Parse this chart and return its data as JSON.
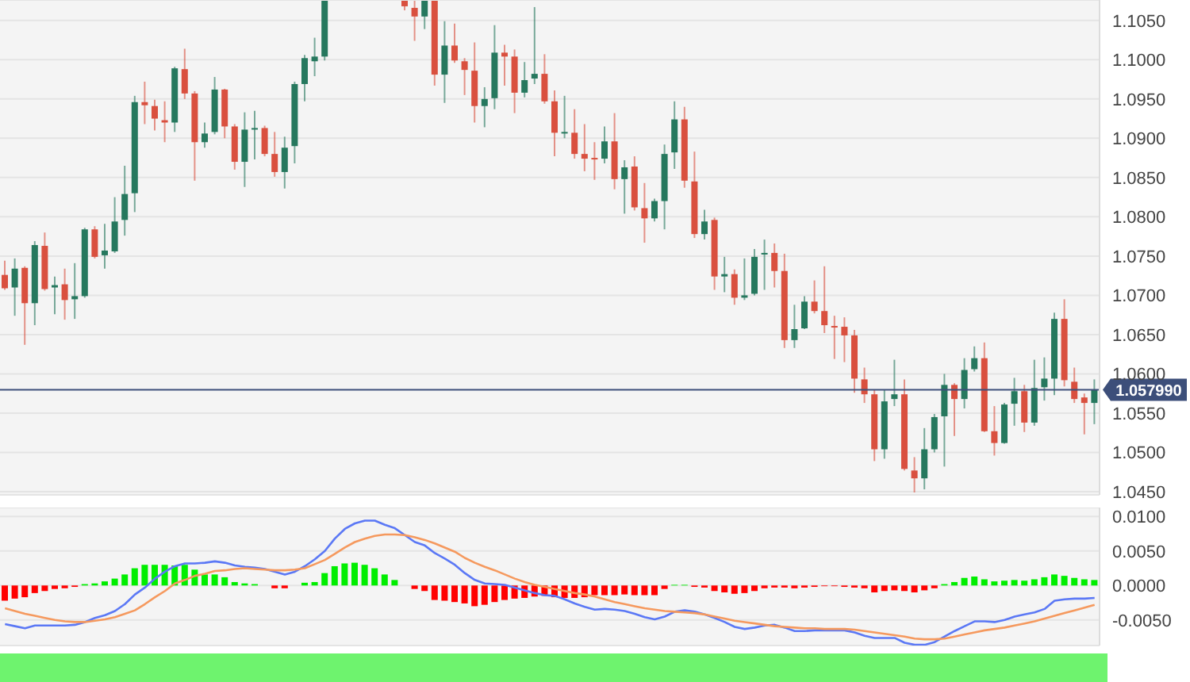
{
  "chart_data": [
    {
      "type": "candlestick",
      "tick_labels": "y",
      "grid": "y",
      "categories": [
        null,
        null,
        null,
        null,
        null,
        null,
        null,
        null,
        null,
        null,
        null,
        null,
        null,
        null,
        null,
        null,
        null,
        null,
        null,
        null,
        null,
        null,
        null,
        null,
        null,
        null,
        null,
        null,
        null,
        null,
        null,
        null,
        null,
        null,
        null,
        null,
        null,
        null,
        null,
        null,
        null,
        null,
        null,
        null,
        null,
        null,
        null,
        null,
        null,
        null,
        null,
        null,
        null,
        null,
        null,
        null,
        null,
        null,
        null,
        null,
        null,
        null,
        null,
        null,
        null,
        null,
        null,
        null,
        null,
        null,
        null,
        null,
        null,
        null,
        null,
        null,
        null,
        null,
        null,
        null,
        null,
        null,
        null,
        null,
        null,
        null,
        null,
        null,
        null,
        null,
        null,
        null,
        null,
        null,
        null,
        null,
        null,
        null,
        null,
        null,
        null,
        null,
        null,
        null,
        null,
        null,
        null,
        null,
        null,
        null
      ],
      "ohlc": [
        [
          1.0726,
          1.0744,
          1.0707,
          1.0709
        ],
        [
          1.071,
          1.0747,
          1.0674,
          1.0734
        ],
        [
          1.0735,
          1.0737,
          1.0637,
          1.069
        ],
        [
          1.069,
          1.0769,
          1.0662,
          1.0764
        ],
        [
          1.0763,
          1.078,
          1.0706,
          1.0708
        ],
        [
          1.071,
          1.0724,
          1.0676,
          1.0713
        ],
        [
          1.0714,
          1.0734,
          1.0669,
          1.0694
        ],
        [
          1.0695,
          1.0741,
          1.067,
          1.0699
        ],
        [
          1.0699,
          1.0786,
          1.0697,
          1.0784
        ],
        [
          1.0784,
          1.0788,
          1.0747,
          1.0749
        ],
        [
          1.0751,
          1.0791,
          1.0734,
          1.0757
        ],
        [
          1.0756,
          1.0825,
          1.0754,
          1.0794
        ],
        [
          1.0796,
          1.0865,
          1.0776,
          1.0829
        ],
        [
          1.083,
          1.0954,
          1.0806,
          1.0946
        ],
        [
          1.0946,
          1.0972,
          1.0918,
          1.0942
        ],
        [
          1.0941,
          1.0949,
          1.091,
          1.0925
        ],
        [
          1.0923,
          1.0947,
          1.0895,
          1.092
        ],
        [
          1.092,
          1.0991,
          1.0908,
          1.0989
        ],
        [
          1.0988,
          1.1014,
          1.095,
          1.0957
        ],
        [
          1.0957,
          1.096,
          1.0846,
          1.0895
        ],
        [
          1.0895,
          1.092,
          1.0888,
          1.0906
        ],
        [
          1.0908,
          1.0978,
          1.0905,
          1.0962
        ],
        [
          1.0962,
          1.0963,
          1.09,
          1.0915
        ],
        [
          1.0915,
          1.0918,
          1.086,
          1.087
        ],
        [
          1.087,
          1.0933,
          1.0838,
          1.0911
        ],
        [
          1.0912,
          1.0935,
          1.0873,
          1.0913
        ],
        [
          1.0913,
          1.0916,
          1.0877,
          1.088
        ],
        [
          1.088,
          1.0908,
          1.0851,
          1.0857
        ],
        [
          1.0857,
          1.0902,
          1.0836,
          1.0888
        ],
        [
          1.089,
          1.0972,
          1.0868,
          1.0969
        ],
        [
          1.0969,
          1.1006,
          1.0947,
          1.1002
        ],
        [
          1.0998,
          1.1028,
          1.0979,
          1.1004
        ],
        [
          1.1004,
          1.1075,
          1.0999,
          1.1075
        ],
        null,
        null,
        null,
        null,
        null,
        null,
        null,
        [
          1.1075,
          1.1075,
          1.1063,
          1.1068
        ],
        [
          1.1066,
          1.1075,
          1.1024,
          1.1055
        ],
        [
          1.1055,
          1.1075,
          1.1039,
          1.1075
        ],
        [
          1.1075,
          1.1075,
          1.0967,
          1.0981
        ],
        [
          1.0981,
          1.1049,
          1.0945,
          1.1018
        ],
        [
          1.1018,
          1.1046,
          1.0996,
          1.0999
        ],
        [
          1.0998,
          1.1002,
          1.0955,
          1.0987
        ],
        [
          1.0986,
          1.1022,
          1.092,
          1.0941
        ],
        [
          1.0941,
          1.0965,
          1.0914,
          1.095
        ],
        [
          1.0951,
          1.1044,
          1.0937,
          1.1009
        ],
        [
          1.1009,
          1.1019,
          1.0967,
          1.1004
        ],
        [
          1.1004,
          1.1013,
          1.0932,
          1.0958
        ],
        [
          1.0958,
          1.0997,
          1.0952,
          1.0974
        ],
        [
          1.0976,
          1.1067,
          1.0969,
          1.0982
        ],
        [
          1.0982,
          1.1007,
          1.0944,
          1.0947
        ],
        [
          1.0947,
          1.0961,
          1.0877,
          1.0907
        ],
        [
          1.0907,
          1.0954,
          1.09,
          1.0908
        ],
        [
          1.0907,
          1.0937,
          1.0874,
          1.088
        ],
        [
          1.088,
          1.0918,
          1.0858,
          1.0874
        ],
        [
          1.0875,
          1.0895,
          1.0847,
          1.0873
        ],
        [
          1.0874,
          1.0915,
          1.0868,
          1.0896
        ],
        [
          1.0896,
          1.0932,
          1.0835,
          1.0848
        ],
        [
          1.0848,
          1.0872,
          1.0804,
          1.0863
        ],
        [
          1.0864,
          1.0877,
          1.0808,
          1.0812
        ],
        [
          1.0811,
          1.0843,
          1.0767,
          1.0798
        ],
        [
          1.0798,
          1.0823,
          1.0794,
          1.082
        ],
        [
          1.082,
          1.0892,
          1.0784,
          1.088
        ],
        [
          1.0882,
          1.0947,
          1.0861,
          1.0924
        ],
        [
          1.0924,
          1.094,
          1.0837,
          1.0846
        ],
        [
          1.0845,
          1.0883,
          1.0773,
          1.0778
        ],
        [
          1.0778,
          1.0809,
          1.0771,
          1.0794
        ],
        [
          1.0796,
          1.0799,
          1.0707,
          1.0724
        ],
        [
          1.0724,
          1.0749,
          1.0704,
          1.0727
        ],
        [
          1.0727,
          1.0733,
          1.0688,
          1.0697
        ],
        [
          1.0697,
          1.0747,
          1.0694,
          1.07
        ],
        [
          1.0702,
          1.0759,
          1.07,
          1.0749
        ],
        [
          1.0752,
          1.0771,
          1.0707,
          1.0754
        ],
        [
          1.0754,
          1.0766,
          1.071,
          1.0731
        ],
        [
          1.0731,
          1.0753,
          1.0633,
          1.0643
        ],
        [
          1.0643,
          1.0688,
          1.0633,
          1.0657
        ],
        [
          1.0658,
          1.0699,
          1.0657,
          1.0692
        ],
        [
          1.0692,
          1.0719,
          1.0677,
          1.068
        ],
        [
          1.068,
          1.0737,
          1.0652,
          1.0662
        ],
        [
          1.0661,
          1.0674,
          1.0619,
          1.066
        ],
        [
          1.066,
          1.0672,
          1.0615,
          1.0649
        ],
        [
          1.0649,
          1.0656,
          1.0576,
          1.0594
        ],
        [
          1.0593,
          1.0608,
          1.0563,
          1.0574
        ],
        [
          1.0574,
          1.058,
          1.0489,
          1.0504
        ],
        [
          1.0504,
          1.058,
          1.0492,
          1.0565
        ],
        [
          1.0568,
          1.0618,
          1.0559,
          1.0574
        ],
        [
          1.0574,
          1.0593,
          1.0477,
          1.0479
        ],
        [
          1.0477,
          1.0494,
          1.0449,
          1.0467
        ],
        [
          1.0467,
          1.0531,
          1.0453,
          1.0504
        ],
        [
          1.0504,
          1.0549,
          1.05,
          1.0545
        ],
        [
          1.0546,
          1.06,
          1.0482,
          1.0586
        ],
        [
          1.0586,
          1.0588,
          1.0521,
          1.0568
        ],
        [
          1.0568,
          1.062,
          1.0556,
          1.0605
        ],
        [
          1.0606,
          1.0635,
          1.0603,
          1.062
        ],
        [
          1.062,
          1.064,
          1.0526,
          1.0527
        ],
        [
          1.0527,
          1.0559,
          1.0496,
          1.0512
        ],
        [
          1.0512,
          1.0563,
          1.0511,
          1.0561
        ],
        [
          1.0562,
          1.0595,
          1.0534,
          1.0578
        ],
        [
          1.0578,
          1.0586,
          1.0526,
          1.0538
        ],
        [
          1.0538,
          1.0618,
          1.0534,
          1.0582
        ],
        [
          1.0583,
          1.0621,
          1.0566,
          1.0594
        ],
        [
          1.0594,
          1.0678,
          1.0573,
          1.067
        ],
        [
          1.067,
          1.0695,
          1.0584,
          1.0592
        ],
        [
          1.059,
          1.0608,
          1.0563,
          1.0568
        ],
        [
          1.057,
          1.0575,
          1.0523,
          1.0563
        ],
        [
          1.0563,
          1.0593,
          1.0536,
          1.058
        ]
      ],
      "colors": [
        "#d9503f",
        "#26785e",
        "#d9503f",
        "#26785e",
        "#d9503f",
        "#26785e",
        "#d9503f",
        "#26785e",
        "#26785e",
        "#d9503f",
        "#26785e",
        "#26785e",
        "#26785e",
        "#26785e",
        "#d9503f",
        "#d9503f",
        "#d9503f",
        "#26785e",
        "#d9503f",
        "#d9503f",
        "#26785e",
        "#26785e",
        "#d9503f",
        "#d9503f",
        "#26785e",
        "#26785e",
        "#d9503f",
        "#d9503f",
        "#26785e",
        "#26785e",
        "#26785e",
        "#26785e",
        "#26785e",
        null,
        null,
        null,
        null,
        null,
        null,
        null,
        "#d9503f",
        "#d9503f",
        "#26785e",
        "#d9503f",
        "#26785e",
        "#d9503f",
        "#d9503f",
        "#d9503f",
        "#26785e",
        "#26785e",
        "#d9503f",
        "#d9503f",
        "#26785e",
        "#26785e",
        "#d9503f",
        "#d9503f",
        "#26785e",
        "#d9503f",
        "#d9503f",
        "#d9503f",
        "#26785e",
        "#d9503f",
        "#26785e",
        "#d9503f",
        "#d9503f",
        "#26785e",
        "#26785e",
        "#26785e",
        "#d9503f",
        "#d9503f",
        "#26785e",
        "#d9503f",
        "#26785e",
        "#d9503f",
        "#26785e",
        "#26785e",
        "#26785e",
        "#d9503f",
        "#d9503f",
        "#26785e",
        "#26785e",
        "#d9503f",
        "#d9503f",
        "#d9503f",
        "#d9503f",
        "#d9503f",
        "#d9503f",
        "#d9503f",
        "#26785e",
        "#26785e",
        "#d9503f",
        "#d9503f",
        "#26785e",
        "#26785e",
        "#26785e",
        "#d9503f",
        "#26785e",
        "#26785e",
        "#d9503f",
        "#d9503f",
        "#26785e",
        "#26785e",
        "#d9503f",
        "#26785e",
        "#26785e",
        "#26785e",
        "#d9503f",
        "#d9503f",
        "#d9503f",
        "#26785e"
      ],
      "ylim": [
        1.0446,
        1.1076
      ],
      "yticks": [
        {
          "value": 1.045,
          "label": "1.0450"
        },
        {
          "value": 1.05,
          "label": "1.0500"
        },
        {
          "value": 1.055,
          "label": "1.0550"
        },
        {
          "value": 1.06,
          "label": "1.0600"
        },
        {
          "value": 1.065,
          "label": "1.0650"
        },
        {
          "value": 1.07,
          "label": "1.0700"
        },
        {
          "value": 1.075,
          "label": "1.0750"
        },
        {
          "value": 1.08,
          "label": "1.0800"
        },
        {
          "value": 1.085,
          "label": "1.0850"
        },
        {
          "value": 1.09,
          "label": "1.0900"
        },
        {
          "value": 1.095,
          "label": "1.0950"
        },
        {
          "value": 1.1,
          "label": "1.1000"
        },
        {
          "value": 1.105,
          "label": "1.1050"
        }
      ],
      "ref_lines": [
        {
          "axis": "y",
          "value": 1.05799,
          "label": "1.057990",
          "color": "#3d4f7a"
        }
      ]
    },
    {
      "type": "bar",
      "tick_labels": "y",
      "grid": "y",
      "categories": [
        null,
        null,
        null,
        null,
        null,
        null,
        null,
        null,
        null,
        null,
        null,
        null,
        null,
        null,
        null,
        null,
        null,
        null,
        null,
        null,
        null,
        null,
        null,
        null,
        null,
        null,
        null,
        null,
        null,
        null,
        null,
        null,
        null,
        null,
        null,
        null,
        null,
        null,
        null,
        null,
        null,
        null,
        null,
        null,
        null,
        null,
        null,
        null,
        null,
        null,
        null,
        null,
        null,
        null,
        null,
        null,
        null,
        null,
        null,
        null,
        null,
        null,
        null,
        null,
        null,
        null,
        null,
        null,
        null,
        null,
        null,
        null,
        null,
        null,
        null,
        null,
        null,
        null,
        null,
        null,
        null,
        null,
        null,
        null,
        null,
        null,
        null,
        null,
        null,
        null,
        null,
        null,
        null,
        null,
        null,
        null,
        null,
        null,
        null,
        null,
        null,
        null,
        null,
        null,
        null,
        null,
        null,
        null,
        null,
        null
      ],
      "series": [
        {
          "type": "bar",
          "values": [
            -0.0022,
            -0.0019,
            -0.0017,
            -0.0011,
            -0.0008,
            -0.0005,
            -0.0004,
            -0.0002,
            0.0002,
            0.0003,
            0.0006,
            0.001,
            0.0016,
            0.0025,
            0.003,
            0.003,
            0.003,
            0.0029,
            0.003,
            0.0023,
            0.0016,
            0.0016,
            0.0012,
            0.0005,
            0.0003,
            0.0002,
            0,
            -0.0004,
            -0.0004,
            0,
            0.0004,
            0.0005,
            0.0018,
            0.0028,
            0.0032,
            0.0033,
            0.003,
            0.0025,
            0.0016,
            0.0008,
            0,
            -0.0005,
            -0.0008,
            -0.0021,
            -0.0022,
            -0.0024,
            -0.0026,
            -0.003,
            -0.0028,
            -0.0024,
            -0.0021,
            -0.0019,
            -0.0018,
            -0.0016,
            -0.0015,
            -0.0017,
            -0.0018,
            -0.0018,
            -0.0017,
            -0.0014,
            -0.0014,
            -0.0014,
            -0.0013,
            -0.0014,
            -0.0014,
            -0.0014,
            -0.0005,
            0.0001,
            0.0001,
            -0.0002,
            -0.0003,
            -0.0008,
            -0.001,
            -0.0012,
            -0.0011,
            -0.0008,
            -0.0004,
            -0.0003,
            -0.0003,
            -0.0004,
            -0.0003,
            -0.0002,
            -0.0001,
            -0.0001,
            -0.0002,
            -0.0003,
            -0.0004,
            -0.001,
            -0.0008,
            -0.0007,
            -0.0008,
            -0.001,
            -0.0007,
            -0.0004,
            0.0002,
            0.0005,
            0.0011,
            0.0013,
            0.0009,
            0.0006,
            0.0007,
            0.0008,
            0.0007,
            0.0009,
            0.0012,
            0.0016,
            0.0014,
            0.0011,
            0.0009,
            0.0008
          ],
          "colors": [
            "#ff0000",
            "#ff0000",
            "#ff0000",
            "#ff0000",
            "#ff0000",
            "#ff0000",
            "#ff0000",
            "#ff0000",
            "#00ee00",
            "#00ee00",
            "#00ee00",
            "#00ee00",
            "#00ee00",
            "#00ee00",
            "#00ee00",
            "#00ee00",
            "#00ee00",
            "#00ee00",
            "#00ee00",
            "#00ee00",
            "#00ee00",
            "#00ee00",
            "#00ee00",
            "#00ee00",
            "#00ee00",
            "#00ee00",
            "#00ee00",
            "#ff0000",
            "#ff0000",
            "#00ee00",
            "#00ee00",
            "#00ee00",
            "#00ee00",
            "#00ee00",
            "#00ee00",
            "#00ee00",
            "#00ee00",
            "#00ee00",
            "#00ee00",
            "#00ee00",
            "#00ee00",
            "#ff0000",
            "#ff0000",
            "#ff0000",
            "#ff0000",
            "#ff0000",
            "#ff0000",
            "#ff0000",
            "#ff0000",
            "#ff0000",
            "#ff0000",
            "#ff0000",
            "#ff0000",
            "#ff0000",
            "#ff0000",
            "#ff0000",
            "#ff0000",
            "#ff0000",
            "#ff0000",
            "#ff0000",
            "#ff0000",
            "#ff0000",
            "#ff0000",
            "#ff0000",
            "#ff0000",
            "#ff0000",
            "#ff0000",
            "#00ee00",
            "#00ee00",
            "#ff0000",
            "#ff0000",
            "#ff0000",
            "#ff0000",
            "#ff0000",
            "#ff0000",
            "#ff0000",
            "#ff0000",
            "#ff0000",
            "#ff0000",
            "#ff0000",
            "#ff0000",
            "#ff0000",
            "#ff0000",
            "#ff0000",
            "#ff0000",
            "#ff0000",
            "#ff0000",
            "#ff0000",
            "#ff0000",
            "#ff0000",
            "#ff0000",
            "#ff0000",
            "#ff0000",
            "#ff0000",
            "#00ee00",
            "#00ee00",
            "#00ee00",
            "#00ee00",
            "#00ee00",
            "#00ee00",
            "#00ee00",
            "#00ee00",
            "#00ee00",
            "#00ee00",
            "#00ee00",
            "#00ee00",
            "#00ee00",
            "#00ee00",
            "#00ee00",
            "#00ee00"
          ]
        },
        {
          "type": "line",
          "color": "#5b78f5",
          "values": [
            -0.0056,
            -0.0059,
            -0.0062,
            -0.0058,
            -0.0058,
            -0.0058,
            -0.0058,
            -0.0057,
            -0.0053,
            -0.0047,
            -0.0043,
            -0.0037,
            -0.0027,
            -0.0013,
            -0.0003,
            0.001,
            0.002,
            0.0028,
            0.0032,
            0.0032,
            0.0033,
            0.0035,
            0.0033,
            0.0029,
            0.0027,
            0.0026,
            0.0024,
            0.002,
            0.0016,
            0.002,
            0.0028,
            0.0038,
            0.005,
            0.0068,
            0.0082,
            0.009,
            0.0094,
            0.0094,
            0.0088,
            0.0083,
            0.0073,
            0.0063,
            0.0058,
            0.0047,
            0.0039,
            0.003,
            0.0018,
            0.0008,
            0.0003,
            0.0002,
            0.0001,
            -0.0003,
            -0.0007,
            -0.0011,
            -0.0014,
            -0.0015,
            -0.002,
            -0.0026,
            -0.0031,
            -0.0035,
            -0.0034,
            -0.0035,
            -0.0037,
            -0.0041,
            -0.0046,
            -0.0049,
            -0.0045,
            -0.0038,
            -0.0036,
            -0.0038,
            -0.0042,
            -0.0047,
            -0.0053,
            -0.006,
            -0.0063,
            -0.0061,
            -0.0058,
            -0.0057,
            -0.0061,
            -0.0066,
            -0.0066,
            -0.0065,
            -0.0065,
            -0.0065,
            -0.0065,
            -0.0068,
            -0.0073,
            -0.0076,
            -0.0076,
            -0.0076,
            -0.0083,
            -0.0086,
            -0.0086,
            -0.0082,
            -0.0074,
            -0.0066,
            -0.0059,
            -0.0052,
            -0.0052,
            -0.0053,
            -0.005,
            -0.0045,
            -0.0042,
            -0.0039,
            -0.0034,
            -0.0022,
            -0.002,
            -0.0019,
            -0.0019,
            -0.0018
          ]
        },
        {
          "type": "line",
          "color": "#f5995e",
          "values": [
            -0.0033,
            -0.0037,
            -0.0041,
            -0.0044,
            -0.0047,
            -0.005,
            -0.0052,
            -0.0053,
            -0.0053,
            -0.0051,
            -0.0049,
            -0.0046,
            -0.0041,
            -0.0036,
            -0.0027,
            -0.0017,
            -0.0008,
            0.0003,
            0.0008,
            0.0014,
            0.0017,
            0.0021,
            0.0022,
            0.0024,
            0.0025,
            0.0024,
            0.0023,
            0.0022,
            0.0022,
            0.0023,
            0.0025,
            0.0031,
            0.0037,
            0.0046,
            0.0055,
            0.0063,
            0.0068,
            0.0072,
            0.0074,
            0.0074,
            0.0073,
            0.007,
            0.0066,
            0.0061,
            0.0055,
            0.0049,
            0.004,
            0.0033,
            0.0027,
            0.0022,
            0.0016,
            0.001,
            0.0005,
            0.0001,
            -0.0002,
            -0.0005,
            -0.0008,
            -0.0011,
            -0.0013,
            -0.0016,
            -0.002,
            -0.0024,
            -0.0027,
            -0.003,
            -0.0033,
            -0.0035,
            -0.0037,
            -0.0038,
            -0.0039,
            -0.004,
            -0.0042,
            -0.0045,
            -0.0048,
            -0.0051,
            -0.0053,
            -0.0055,
            -0.0057,
            -0.0059,
            -0.006,
            -0.0061,
            -0.0062,
            -0.0062,
            -0.0063,
            -0.0063,
            -0.0063,
            -0.0064,
            -0.0066,
            -0.0068,
            -0.007,
            -0.0072,
            -0.0074,
            -0.0077,
            -0.0078,
            -0.0078,
            -0.0077,
            -0.0074,
            -0.0071,
            -0.0068,
            -0.0065,
            -0.0063,
            -0.0061,
            -0.0058,
            -0.0055,
            -0.0052,
            -0.0048,
            -0.0044,
            -0.004,
            -0.0036,
            -0.0032,
            -0.0028
          ]
        }
      ],
      "ylim": [
        -0.0087,
        0.0113
      ],
      "yticks": [
        {
          "value": -0.005,
          "label": "-0.0050"
        },
        {
          "value": 0,
          "label": "0.0000"
        },
        {
          "value": 0.005,
          "label": "0.0050"
        },
        {
          "value": 0.01,
          "label": "0.0100"
        }
      ]
    }
  ]
}
